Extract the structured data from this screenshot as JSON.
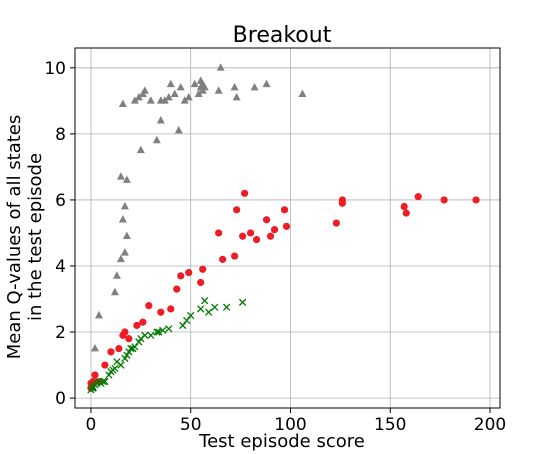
{
  "chart_data": {
    "type": "scatter",
    "title": "Breakout",
    "xlabel": "Test episode score",
    "ylabel_lines": [
      "Mean Q-values of all states",
      "in the test episode"
    ],
    "xlim": [
      -8,
      205
    ],
    "ylim": [
      -0.3,
      10.6
    ],
    "xticks": [
      0,
      50,
      100,
      150,
      200
    ],
    "yticks": [
      0,
      2,
      4,
      6,
      8,
      10
    ],
    "grid": true,
    "series": [
      {
        "marker": "triangle",
        "color": "#808080",
        "points": [
          [
            1,
            0.3
          ],
          [
            2,
            1.5
          ],
          [
            4,
            2.5
          ],
          [
            12,
            3.2
          ],
          [
            13,
            3.7
          ],
          [
            15,
            4.2
          ],
          [
            15,
            6.7
          ],
          [
            16,
            5.4
          ],
          [
            16,
            8.9
          ],
          [
            17,
            5.8
          ],
          [
            17,
            4.4
          ],
          [
            18,
            6.6
          ],
          [
            18,
            4.9
          ],
          [
            22,
            9.0
          ],
          [
            24,
            9.1
          ],
          [
            25,
            7.5
          ],
          [
            26,
            9.2
          ],
          [
            27,
            9.3
          ],
          [
            30,
            9.0
          ],
          [
            33,
            7.8
          ],
          [
            35,
            9.0
          ],
          [
            35,
            8.4
          ],
          [
            37,
            9.0
          ],
          [
            39,
            9.1
          ],
          [
            40,
            9.5
          ],
          [
            42,
            9.2
          ],
          [
            44,
            8.1
          ],
          [
            45,
            9.4
          ],
          [
            47,
            9.0
          ],
          [
            49,
            9.1
          ],
          [
            52,
            9.5
          ],
          [
            54,
            9.2
          ],
          [
            55,
            9.4
          ],
          [
            55,
            9.6
          ],
          [
            56,
            9.3
          ],
          [
            56,
            9.5
          ],
          [
            57,
            9.4
          ],
          [
            64,
            9.3
          ],
          [
            65,
            10.0
          ],
          [
            72,
            9.4
          ],
          [
            73,
            9.1
          ],
          [
            82,
            9.4
          ],
          [
            88,
            9.5
          ],
          [
            106,
            9.2
          ]
        ]
      },
      {
        "marker": "circle",
        "color": "#ee1c25",
        "points": [
          [
            0,
            0.3
          ],
          [
            0,
            0.45
          ],
          [
            1,
            0.5
          ],
          [
            2,
            0.7
          ],
          [
            4,
            0.5
          ],
          [
            7,
            1.0
          ],
          [
            10,
            1.4
          ],
          [
            14,
            1.5
          ],
          [
            16,
            1.9
          ],
          [
            17,
            2.0
          ],
          [
            19,
            1.8
          ],
          [
            23,
            2.2
          ],
          [
            26,
            2.3
          ],
          [
            29,
            2.8
          ],
          [
            35,
            2.6
          ],
          [
            40,
            2.7
          ],
          [
            43,
            3.3
          ],
          [
            45,
            3.7
          ],
          [
            49,
            3.8
          ],
          [
            55,
            3.5
          ],
          [
            56,
            3.9
          ],
          [
            64,
            5.0
          ],
          [
            66,
            4.2
          ],
          [
            72,
            4.3
          ],
          [
            73,
            5.7
          ],
          [
            76,
            4.9
          ],
          [
            77,
            6.2
          ],
          [
            80,
            5.0
          ],
          [
            83,
            4.8
          ],
          [
            88,
            5.4
          ],
          [
            90,
            4.9
          ],
          [
            92,
            5.1
          ],
          [
            97,
            5.7
          ],
          [
            98,
            5.2
          ],
          [
            123,
            5.3
          ],
          [
            126,
            5.9
          ],
          [
            126,
            6.0
          ],
          [
            157,
            5.8
          ],
          [
            158,
            5.6
          ],
          [
            164,
            6.1
          ],
          [
            177,
            6.0
          ],
          [
            193,
            6.0
          ]
        ]
      },
      {
        "marker": "x",
        "color": "#007a00",
        "points": [
          [
            0,
            0.25
          ],
          [
            1,
            0.3
          ],
          [
            1,
            0.35
          ],
          [
            2,
            0.4
          ],
          [
            3,
            0.45
          ],
          [
            4,
            0.5
          ],
          [
            5,
            0.45
          ],
          [
            6,
            0.5
          ],
          [
            7,
            0.5
          ],
          [
            9,
            0.7
          ],
          [
            10,
            0.8
          ],
          [
            11,
            0.85
          ],
          [
            12,
            0.9
          ],
          [
            13,
            1.1
          ],
          [
            15,
            1.0
          ],
          [
            17,
            1.2
          ],
          [
            18,
            1.3
          ],
          [
            19,
            1.4
          ],
          [
            20,
            1.5
          ],
          [
            21,
            1.5
          ],
          [
            22,
            1.55
          ],
          [
            24,
            1.7
          ],
          [
            25,
            1.8
          ],
          [
            27,
            1.9
          ],
          [
            30,
            1.9
          ],
          [
            33,
            2.0
          ],
          [
            34,
            2.0
          ],
          [
            36,
            2.05
          ],
          [
            39,
            2.1
          ],
          [
            46,
            2.2
          ],
          [
            48,
            2.35
          ],
          [
            50,
            2.5
          ],
          [
            55,
            2.7
          ],
          [
            57,
            2.95
          ],
          [
            59,
            2.6
          ],
          [
            62,
            2.75
          ],
          [
            68,
            2.75
          ],
          [
            76,
            2.9
          ]
        ]
      }
    ]
  }
}
